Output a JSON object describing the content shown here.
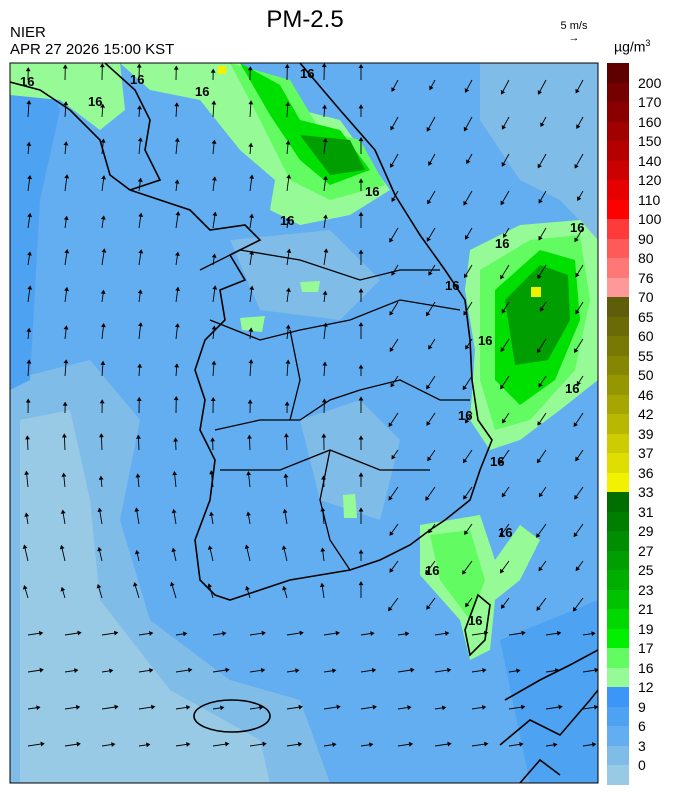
{
  "header": {
    "title": "PM-2.5",
    "agency": "NIER",
    "timestamp": "APR 27 2026 15:00 KST",
    "wind_reference_label": "5 m/s",
    "wind_reference_icon": "arrow-right-icon"
  },
  "legend": {
    "unit": "µg/m",
    "unit_superscript": "3",
    "labels": [
      "200",
      "170",
      "160",
      "150",
      "140",
      "120",
      "110",
      "100",
      "90",
      "80",
      "76",
      "70",
      "65",
      "60",
      "55",
      "50",
      "46",
      "42",
      "39",
      "37",
      "36",
      "33",
      "31",
      "29",
      "27",
      "25",
      "23",
      "21",
      "19",
      "17",
      "16",
      "12",
      "9",
      "6",
      "3",
      "0"
    ],
    "colors": [
      "#5e0000",
      "#740000",
      "#8a0000",
      "#a00000",
      "#b40000",
      "#cc0000",
      "#e60000",
      "#ff0000",
      "#ff3a3a",
      "#ff5a5a",
      "#ff7878",
      "#ff9898",
      "#5e5e0a",
      "#6a6a06",
      "#787804",
      "#868602",
      "#969600",
      "#a6a600",
      "#b8b800",
      "#cccc00",
      "#dede00",
      "#f2f200",
      "#006e00",
      "#007e00",
      "#008e00",
      "#009e00",
      "#00ae00",
      "#00c200",
      "#00d800",
      "#00f000",
      "#62fb62",
      "#96fb96",
      "#3c96f8",
      "#4ea2f2",
      "#62aef0",
      "#80bce8",
      "#98cae6"
    ]
  },
  "map": {
    "contour_label": "16",
    "colors": {
      "sea_base": "#62aef0",
      "light_blue": "#80bce8",
      "lightest_blue": "#98cae6",
      "mid_blue": "#4ea2f2",
      "deep_blue": "#3c96f8",
      "green_edge": "#96fb96",
      "green_light": "#62fb62",
      "green": "#00e000",
      "green_dark": "#009e00",
      "hotspot": "#f2f200"
    }
  }
}
